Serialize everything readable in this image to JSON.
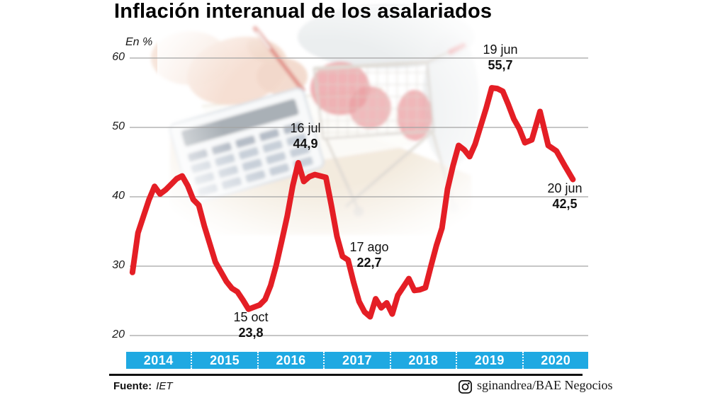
{
  "title": "Inflación interanual de los asalariados",
  "y_axis": {
    "unit_label": "En %",
    "ticks": [
      "60",
      "50",
      "40",
      "30",
      "20"
    ]
  },
  "x_axis": {
    "years": [
      "2014",
      "2015",
      "2016",
      "2017",
      "2018",
      "2019",
      "2020"
    ]
  },
  "annotations": [
    {
      "date": "16 jul",
      "value": "44,9"
    },
    {
      "date": "15 oct",
      "value": "23,8"
    },
    {
      "date": "17 ago",
      "value": "22,7"
    },
    {
      "date": "19 jun",
      "value": "55,7"
    },
    {
      "date": "20 jun",
      "value": "42,5"
    }
  ],
  "footer": {
    "source_label": "Fuente:",
    "source_value": "IET",
    "credit": "sginandrea/BAE Negocios",
    "credit_icon": "instagram-icon"
  },
  "colors": {
    "line": "#e41e25",
    "band": "#1fa9e2",
    "grid": "#a3a3a3",
    "rule": "#111111"
  },
  "chart_data": {
    "type": "line",
    "title": "Inflación interanual de los asalariados",
    "ylabel": "En %",
    "ylim": [
      20,
      60
    ],
    "yticks": [
      20,
      30,
      40,
      50,
      60
    ],
    "grid": true,
    "legend": false,
    "x_unit": "months Jan-2014 to Jun-2020",
    "series": [
      {
        "name": "Inflación interanual de los asalariados (%)",
        "color": "#e41e25",
        "by_year": [
          {
            "year": 2014,
            "values": [
              29.1,
              34.8,
              37.2,
              39.6,
              41.5,
              40.4,
              41.0,
              41.8,
              42.6,
              43.0,
              41.6,
              39.6
            ]
          },
          {
            "year": 2015,
            "values": [
              38.8,
              35.8,
              33.2,
              30.6,
              29.2,
              27.8,
              26.8,
              26.3,
              25.1,
              23.8,
              24.1,
              24.4
            ]
          },
          {
            "year": 2016,
            "values": [
              25.2,
              27.2,
              30.1,
              33.6,
              37.2,
              41.6,
              44.9,
              42.2,
              42.9,
              43.2,
              43.0,
              42.8
            ]
          },
          {
            "year": 2017,
            "values": [
              38.7,
              34.3,
              31.4,
              30.9,
              27.7,
              24.9,
              23.4,
              22.7,
              25.3,
              24.0,
              24.7,
              23.1
            ]
          },
          {
            "year": 2018,
            "values": [
              25.8,
              27.0,
              28.2,
              26.5,
              26.6,
              26.9,
              30.0,
              33.0,
              35.5,
              41.1,
              44.5,
              47.4
            ]
          },
          {
            "year": 2019,
            "values": [
              46.8,
              45.8,
              47.6,
              50.2,
              52.8,
              55.7,
              55.6,
              55.2,
              53.3,
              51.2,
              49.8,
              47.8
            ]
          },
          {
            "year": 2020,
            "values": [
              48.2,
              52.3,
              47.4,
              46.6,
              44.5,
              42.5
            ]
          }
        ]
      }
    ],
    "callouts": [
      {
        "point": "oct 2015",
        "label": "15 oct",
        "value": 23.8
      },
      {
        "point": "jul 2016",
        "label": "16 jul",
        "value": 44.9
      },
      {
        "point": "ago 2017",
        "label": "17 ago",
        "value": 22.7
      },
      {
        "point": "jun 2019",
        "label": "19 jun",
        "value": 55.7
      },
      {
        "point": "jun 2020",
        "label": "20 jun",
        "value": 42.5
      }
    ]
  }
}
